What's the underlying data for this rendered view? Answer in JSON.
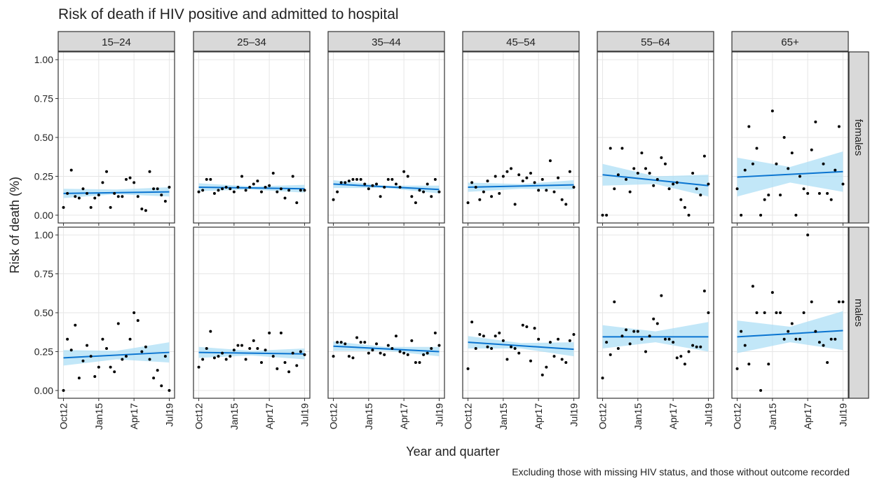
{
  "title": "Risk of death if HIV positive and admitted to hospital",
  "x_label": "Year and quarter",
  "y_label": "Risk of death (%)",
  "caption": "Excluding those with missing HIV status, and those without outcome recorded",
  "chart_data": {
    "type": "scatter",
    "categories": [
      "Oct12",
      null,
      null,
      null,
      null,
      null,
      null,
      null,
      null,
      "Jan15",
      null,
      null,
      null,
      null,
      null,
      null,
      null,
      null,
      "Apr17",
      null,
      null,
      null,
      null,
      null,
      null,
      null,
      null,
      "Jul19"
    ],
    "ylim": [
      -0.05,
      1.05
    ],
    "yticks": [
      {
        "value": 0,
        "label": "0.00"
      },
      {
        "value": 0.25,
        "label": "0.25"
      },
      {
        "value": 0.5,
        "label": "0.50"
      },
      {
        "value": 0.75,
        "label": "0.75"
      },
      {
        "value": 1,
        "label": "1.00"
      }
    ],
    "grid": true,
    "point_color": "#000000",
    "fit_color": "#0a74d0",
    "band_color": "#a8ddf5",
    "panels": [
      {
        "column": "15–24",
        "row": "females",
        "values": [
          0.05,
          0.14,
          0.29,
          0.12,
          0.11,
          0.17,
          0.14,
          0.05,
          0.11,
          0.13,
          0.21,
          0.28,
          0.05,
          0.14,
          0.12,
          0.12,
          0.23,
          0.24,
          0.21,
          0.12,
          0.04,
          0.03,
          0.28,
          0.17,
          0.17,
          0.13,
          0.09,
          0.18
        ],
        "fit": [
          0.14,
          0.15
        ],
        "band_lower": [
          0.11,
          0.135,
          0.12
        ],
        "band_upper": [
          0.17,
          0.165,
          0.18
        ]
      },
      {
        "column": "25–34",
        "row": "females",
        "values": [
          0.15,
          0.16,
          0.23,
          0.23,
          0.14,
          0.16,
          0.17,
          0.18,
          0.17,
          0.15,
          0.18,
          0.25,
          0.16,
          0.18,
          0.2,
          0.22,
          0.15,
          0.18,
          0.19,
          0.27,
          0.15,
          0.17,
          0.11,
          0.16,
          0.25,
          0.08,
          0.16,
          0.16
        ],
        "fit": [
          0.18,
          0.17
        ],
        "band_lower": [
          0.155,
          0.165,
          0.145
        ],
        "band_upper": [
          0.205,
          0.185,
          0.195
        ]
      },
      {
        "column": "35–44",
        "row": "females",
        "values": [
          0.1,
          0.15,
          0.21,
          0.21,
          0.22,
          0.23,
          0.23,
          0.23,
          0.2,
          0.17,
          0.19,
          0.2,
          0.12,
          0.18,
          0.23,
          0.23,
          0.2,
          0.18,
          0.28,
          0.25,
          0.12,
          0.08,
          0.16,
          0.15,
          0.2,
          0.12,
          0.23,
          0.15
        ],
        "fit": [
          0.2,
          0.165
        ],
        "band_lower": [
          0.175,
          0.175,
          0.14
        ],
        "band_upper": [
          0.225,
          0.19,
          0.19
        ]
      },
      {
        "column": "45–54",
        "row": "females",
        "values": [
          0.08,
          0.21,
          0.18,
          0.1,
          0.15,
          0.22,
          0.12,
          0.25,
          0.14,
          0.25,
          0.28,
          0.3,
          0.07,
          0.26,
          0.22,
          0.24,
          0.27,
          0.21,
          0.16,
          0.23,
          0.16,
          0.35,
          0.15,
          0.24,
          0.1,
          0.07,
          0.28,
          0.18
        ],
        "fit": [
          0.18,
          0.195
        ],
        "band_lower": [
          0.15,
          0.17,
          0.165
        ],
        "band_upper": [
          0.21,
          0.2,
          0.225
        ]
      },
      {
        "column": "55–64",
        "row": "females",
        "values": [
          0,
          0,
          0.43,
          0.17,
          0.26,
          0.43,
          0.23,
          0.15,
          0.3,
          0.27,
          0.4,
          0.3,
          0.27,
          0.19,
          0.23,
          0.37,
          0.33,
          0.17,
          0.2,
          0.21,
          0.1,
          0.05,
          0,
          0.27,
          0.17,
          0.13,
          0.38,
          0.2
        ],
        "fit": [
          0.26,
          0.19
        ],
        "band_lower": [
          0.19,
          0.2,
          0.12
        ],
        "band_upper": [
          0.33,
          0.25,
          0.26
        ]
      },
      {
        "column": "65+",
        "row": "females",
        "values": [
          0.17,
          0,
          0.29,
          0.57,
          0.33,
          0.43,
          0,
          0.1,
          0.13,
          0.67,
          0.33,
          0.13,
          0.5,
          0.3,
          0.4,
          0,
          0.25,
          0.17,
          0.14,
          0.42,
          0.6,
          0.14,
          0.33,
          0.14,
          0.1,
          0.29,
          0.57,
          0.2
        ],
        "fit": [
          0.245,
          0.28
        ],
        "band_lower": [
          0.12,
          0.21,
          0.15
        ],
        "band_upper": [
          0.37,
          0.31,
          0.41
        ]
      },
      {
        "column": "15–24",
        "row": "males",
        "values": [
          0,
          0.33,
          0.26,
          0.42,
          0.08,
          0.19,
          0.29,
          0.22,
          0.09,
          0.15,
          0.33,
          0.27,
          0.15,
          0.12,
          0.43,
          0.2,
          0.22,
          0.33,
          0.5,
          0.45,
          0.25,
          0.28,
          0.2,
          0.08,
          0.13,
          0.03,
          0.22,
          0
        ],
        "fit": [
          0.21,
          0.245
        ],
        "band_lower": [
          0.16,
          0.2,
          0.18
        ],
        "band_upper": [
          0.26,
          0.255,
          0.31
        ]
      },
      {
        "column": "25–34",
        "row": "males",
        "values": [
          0.15,
          0.2,
          0.27,
          0.38,
          0.21,
          0.22,
          0.24,
          0.2,
          0.22,
          0.26,
          0.29,
          0.29,
          0.2,
          0.27,
          0.32,
          0.27,
          0.18,
          0.26,
          0.37,
          0.22,
          0.14,
          0.37,
          0.18,
          0.12,
          0.24,
          0.16,
          0.25,
          0.23
        ],
        "fit": [
          0.245,
          0.235
        ],
        "band_lower": [
          0.21,
          0.225,
          0.2
        ],
        "band_upper": [
          0.28,
          0.255,
          0.27
        ]
      },
      {
        "column": "35–44",
        "row": "males",
        "values": [
          0.22,
          0.31,
          0.31,
          0.3,
          0.22,
          0.21,
          0.34,
          0.31,
          0.31,
          0.24,
          0.26,
          0.3,
          0.24,
          0.23,
          0.29,
          0.27,
          0.35,
          0.25,
          0.24,
          0.23,
          0.32,
          0.18,
          0.18,
          0.23,
          0.24,
          0.27,
          0.37,
          0.29
        ],
        "fit": [
          0.285,
          0.25
        ],
        "band_lower": [
          0.255,
          0.255,
          0.22
        ],
        "band_upper": [
          0.315,
          0.28,
          0.28
        ]
      },
      {
        "column": "45–54",
        "row": "males",
        "values": [
          0.14,
          0.44,
          0.27,
          0.36,
          0.35,
          0.28,
          0.27,
          0.35,
          0.37,
          0.32,
          0.2,
          0.28,
          0.27,
          0.24,
          0.42,
          0.41,
          0.19,
          0.4,
          0.33,
          0.1,
          0.15,
          0.31,
          0.22,
          0.33,
          0.2,
          0.18,
          0.32,
          0.36
        ],
        "fit": [
          0.31,
          0.265
        ],
        "band_lower": [
          0.27,
          0.27,
          0.22
        ],
        "band_upper": [
          0.35,
          0.305,
          0.31
        ]
      },
      {
        "column": "55–64",
        "row": "males",
        "values": [
          0.08,
          0.31,
          0.23,
          0.57,
          0.27,
          0.35,
          0.39,
          0.3,
          0.38,
          0.38,
          0.33,
          0.25,
          0.35,
          0.46,
          0.43,
          0.61,
          0.33,
          0.33,
          0.31,
          0.21,
          0.22,
          0.17,
          0.25,
          0.29,
          0.28,
          0.28,
          0.64,
          0.5
        ],
        "fit": [
          0.345,
          0.345
        ],
        "band_lower": [
          0.27,
          0.31,
          0.25
        ],
        "band_upper": [
          0.42,
          0.38,
          0.44
        ]
      },
      {
        "column": "65+",
        "row": "males",
        "values": [
          0.14,
          0.38,
          0.29,
          0.17,
          0.67,
          0.5,
          0,
          0.5,
          0.17,
          0.63,
          0.5,
          0.5,
          0.33,
          0.38,
          0.43,
          0.33,
          0.33,
          0.5,
          1,
          0.57,
          0.38,
          0.31,
          0.29,
          0.18,
          0.33,
          0.33,
          0.57,
          0.57
        ],
        "fit": [
          0.345,
          0.385
        ],
        "band_lower": [
          0.24,
          0.31,
          0.26
        ],
        "band_upper": [
          0.45,
          0.41,
          0.51
        ]
      }
    ]
  }
}
